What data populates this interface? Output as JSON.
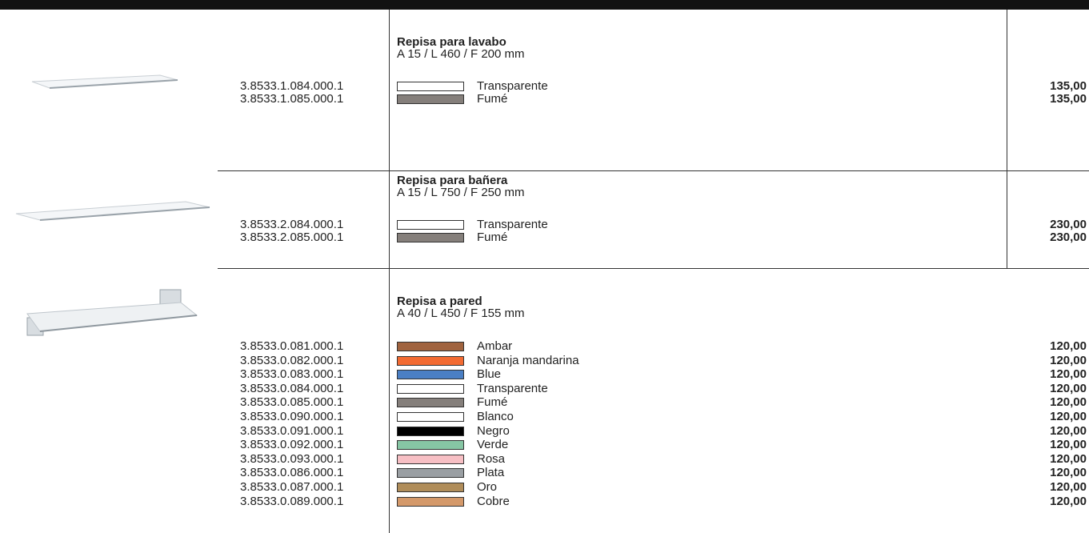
{
  "products": [
    {
      "title": "Repisa para lavabo",
      "dimensions": "A 15 / L 460 / F 200 mm",
      "variants": [
        {
          "code": "3.8533.1.084.000.1",
          "color": "#ffffff",
          "finish": "Transparente",
          "price": "135,00"
        },
        {
          "code": "3.8533.1.085.000.1",
          "color": "#857f7b",
          "finish": "Fumé",
          "price": "135,00"
        }
      ]
    },
    {
      "title": "Repisa para bañera",
      "dimensions": "A 15 / L 750 / F 250 mm",
      "variants": [
        {
          "code": "3.8533.2.084.000.1",
          "color": "#ffffff",
          "finish": "Transparente",
          "price": "230,00"
        },
        {
          "code": "3.8533.2.085.000.1",
          "color": "#857f7b",
          "finish": "Fumé",
          "price": "230,00"
        }
      ]
    },
    {
      "title": "Repisa a pared",
      "dimensions": "A 40 / L 450 / F 155 mm",
      "variants": [
        {
          "code": "3.8533.0.081.000.1",
          "color": "#a0633e",
          "finish": "Ambar",
          "price": "120,00"
        },
        {
          "code": "3.8533.0.082.000.1",
          "color": "#f36b32",
          "finish": "Naranja mandarina",
          "price": "120,00"
        },
        {
          "code": "3.8533.0.083.000.1",
          "color": "#4a7fc4",
          "finish": "Blue",
          "price": "120,00"
        },
        {
          "code": "3.8533.0.084.000.1",
          "color": "#ffffff",
          "finish": "Transparente",
          "price": "120,00"
        },
        {
          "code": "3.8533.0.085.000.1",
          "color": "#857f7b",
          "finish": "Fumé",
          "price": "120,00"
        },
        {
          "code": "3.8533.0.090.000.1",
          "color": "#ffffff",
          "finish": "Blanco",
          "price": "120,00"
        },
        {
          "code": "3.8533.0.091.000.1",
          "color": "#000000",
          "finish": "Negro",
          "price": "120,00"
        },
        {
          "code": "3.8533.0.092.000.1",
          "color": "#86c6a4",
          "finish": "Verde",
          "price": "120,00"
        },
        {
          "code": "3.8533.0.093.000.1",
          "color": "#f7bfc4",
          "finish": "Rosa",
          "price": "120,00"
        },
        {
          "code": "3.8533.0.086.000.1",
          "color": "#9a9fa3",
          "finish": "Plata",
          "price": "120,00"
        },
        {
          "code": "3.8533.0.087.000.1",
          "color": "#b08d5a",
          "finish": "Oro",
          "price": "120,00"
        },
        {
          "code": "3.8533.0.089.000.1",
          "color": "#d4996a",
          "finish": "Cobre",
          "price": "120,00"
        }
      ]
    }
  ]
}
